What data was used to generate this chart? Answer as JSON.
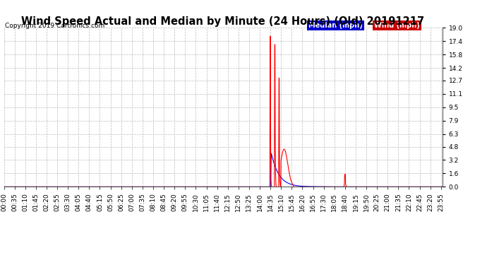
{
  "title": "Wind Speed Actual and Median by Minute (24 Hours) (Old) 20191217",
  "copyright": "Copyright 2019 Cartronics.com",
  "yticks": [
    0.0,
    1.6,
    3.2,
    4.8,
    6.3,
    7.9,
    9.5,
    11.1,
    12.7,
    14.2,
    15.8,
    17.4,
    19.0
  ],
  "ymax": 19.0,
  "ymin": 0.0,
  "median_color": "#0000ff",
  "wind_color": "#ff0000",
  "background_color": "#ffffff",
  "grid_color": "#bbbbbb",
  "legend_median_bg": "#0000cc",
  "legend_wind_bg": "#cc0000",
  "title_fontsize": 10.5,
  "tick_fontsize": 6.5,
  "xtick_interval": 35
}
